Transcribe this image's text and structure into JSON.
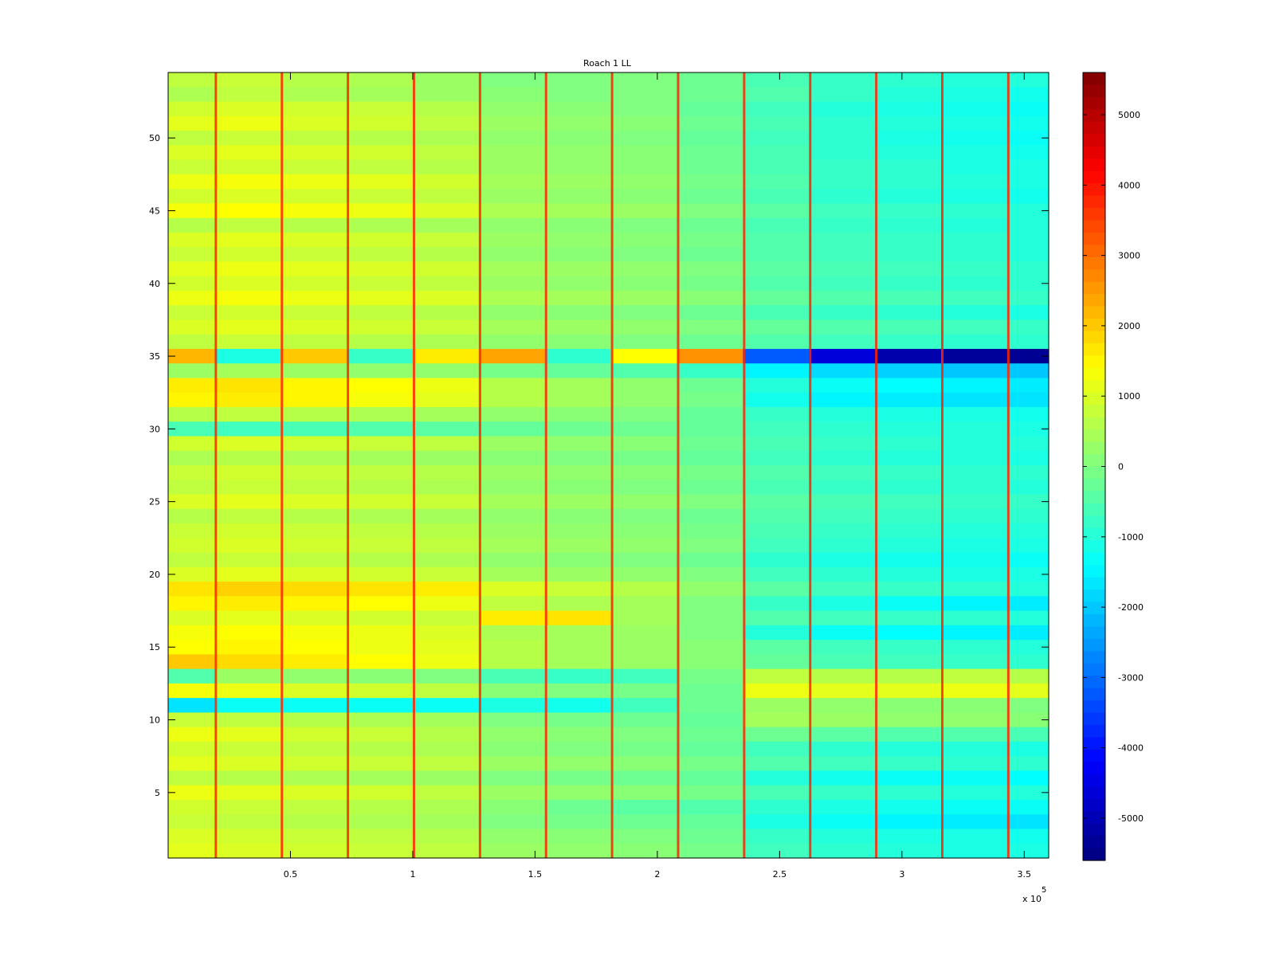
{
  "chart_data": {
    "type": "heatmap",
    "title": "Roach 1 LL",
    "xlabel": "",
    "ylabel": "",
    "xlim": [
      0,
      360000
    ],
    "ylim": [
      0.5,
      54.5
    ],
    "x_tick_labels": [
      "0.5",
      "1",
      "1.5",
      "2",
      "2.5",
      "3",
      "3.5"
    ],
    "x_tick_values": [
      50000,
      100000,
      150000,
      200000,
      250000,
      300000,
      350000
    ],
    "x_exponent_prefix": "x 10",
    "x_exponent_power": "5",
    "y_tick_labels": [
      "5",
      "10",
      "15",
      "20",
      "25",
      "30",
      "35",
      "40",
      "45",
      "50"
    ],
    "y_tick_values": [
      5,
      10,
      15,
      20,
      25,
      30,
      35,
      40,
      45,
      50
    ],
    "rows": 54,
    "colormap": "jet",
    "clim": [
      -5600,
      5600
    ],
    "colorbar_tick_labels": [
      "5000",
      "4000",
      "3000",
      "2000",
      "1000",
      "0",
      "-1000",
      "-2000",
      "-3000",
      "-4000",
      "-5000"
    ],
    "colorbar_tick_values": [
      5000,
      4000,
      3000,
      2000,
      1000,
      0,
      -1000,
      -2000,
      -3000,
      -4000,
      -5000
    ],
    "segment_boundaries_x": [
      0,
      19000,
      46000,
      73000,
      100000,
      127000,
      154000,
      181000,
      208000,
      235000,
      262000,
      289000,
      316000,
      343000,
      360000
    ],
    "segment_means": [
      [
        700,
        800,
        600,
        500,
        300,
        0,
        0,
        0,
        -200,
        -600,
        -800,
        -900,
        -1000,
        -1000
      ],
      [
        500,
        700,
        500,
        400,
        300,
        100,
        0,
        0,
        -200,
        -500,
        -800,
        -1000,
        -1100,
        -1200
      ],
      [
        900,
        1000,
        900,
        800,
        600,
        200,
        100,
        0,
        -300,
        -700,
        -1000,
        -1100,
        -1200,
        -1300
      ],
      [
        1100,
        1200,
        1000,
        900,
        700,
        300,
        200,
        100,
        -200,
        -600,
        -900,
        -1000,
        -1100,
        -1200
      ],
      [
        700,
        800,
        700,
        600,
        500,
        200,
        100,
        0,
        -300,
        -700,
        -900,
        -1100,
        -1200,
        -1300
      ],
      [
        1000,
        1100,
        1000,
        900,
        700,
        300,
        200,
        100,
        -200,
        -600,
        -900,
        -1000,
        -1100,
        -1200
      ],
      [
        800,
        900,
        800,
        700,
        600,
        300,
        200,
        100,
        -200,
        -600,
        -800,
        -900,
        -1100,
        -1100
      ],
      [
        1200,
        1300,
        1200,
        1100,
        900,
        400,
        300,
        200,
        -100,
        -500,
        -800,
        -900,
        -1000,
        -1100
      ],
      [
        900,
        1000,
        900,
        800,
        700,
        300,
        200,
        100,
        -200,
        -600,
        -900,
        -1000,
        -1100,
        -1200
      ],
      [
        1300,
        1400,
        1300,
        1200,
        1000,
        500,
        400,
        300,
        0,
        -400,
        -700,
        -800,
        -900,
        -1000
      ],
      [
        600,
        700,
        600,
        500,
        400,
        200,
        100,
        0,
        -200,
        -600,
        -800,
        -900,
        -1000,
        -1000
      ],
      [
        1000,
        1100,
        1000,
        900,
        800,
        300,
        200,
        100,
        -100,
        -500,
        -700,
        -800,
        -900,
        -1000
      ],
      [
        800,
        900,
        800,
        700,
        600,
        200,
        100,
        0,
        -200,
        -500,
        -700,
        -800,
        -900,
        -1000
      ],
      [
        1100,
        1200,
        1100,
        1000,
        900,
        400,
        300,
        200,
        0,
        -400,
        -600,
        -700,
        -800,
        -900
      ],
      [
        900,
        1000,
        900,
        800,
        700,
        300,
        200,
        100,
        -100,
        -500,
        -700,
        -800,
        -900,
        -900
      ],
      [
        1200,
        1300,
        1200,
        1100,
        1000,
        500,
        400,
        300,
        100,
        -300,
        -500,
        -600,
        -700,
        -800
      ],
      [
        800,
        900,
        800,
        700,
        600,
        200,
        100,
        0,
        -200,
        -600,
        -800,
        -900,
        -1000,
        -1100
      ],
      [
        1000,
        1100,
        1000,
        900,
        800,
        400,
        300,
        200,
        0,
        -300,
        -500,
        -600,
        -700,
        -800
      ],
      [
        700,
        800,
        700,
        600,
        500,
        200,
        100,
        0,
        -200,
        -500,
        -700,
        -800,
        -900,
        -900
      ],
      [
        2200,
        -1100,
        2000,
        -800,
        1600,
        2400,
        -900,
        1400,
        2600,
        -3200,
        -4600,
        -5100,
        -5300,
        -5400
      ],
      [
        300,
        400,
        300,
        200,
        200,
        -100,
        -300,
        -500,
        -800,
        -1500,
        -1800,
        -1900,
        -2000,
        -2000
      ],
      [
        1600,
        1700,
        1500,
        1400,
        1200,
        600,
        400,
        200,
        -200,
        -1000,
        -1300,
        -1400,
        -1500,
        -1600
      ],
      [
        1500,
        1600,
        1500,
        1300,
        1100,
        600,
        400,
        200,
        -100,
        -1200,
        -1500,
        -1600,
        -1700,
        -1700
      ],
      [
        600,
        700,
        600,
        500,
        400,
        200,
        100,
        0,
        -300,
        -800,
        -1000,
        -1100,
        -1100,
        -1200
      ],
      [
        -600,
        -700,
        -600,
        -500,
        -400,
        -300,
        -200,
        -200,
        -300,
        -700,
        -900,
        -1000,
        -1000,
        -1100
      ],
      [
        900,
        1000,
        900,
        800,
        700,
        300,
        200,
        100,
        -200,
        -600,
        -800,
        -900,
        -1000,
        -1000
      ],
      [
        500,
        600,
        500,
        400,
        300,
        100,
        0,
        -100,
        -300,
        -700,
        -900,
        -1000,
        -1000,
        -1100
      ],
      [
        800,
        900,
        800,
        700,
        600,
        300,
        200,
        100,
        -100,
        -500,
        -700,
        -800,
        -900,
        -900
      ],
      [
        700,
        800,
        700,
        600,
        500,
        200,
        100,
        0,
        -200,
        -600,
        -800,
        -900,
        -900,
        -1000
      ],
      [
        1000,
        1100,
        1000,
        900,
        800,
        400,
        300,
        200,
        0,
        -400,
        -600,
        -700,
        -800,
        -800
      ],
      [
        600,
        700,
        600,
        500,
        400,
        200,
        100,
        0,
        -200,
        -500,
        -700,
        -800,
        -900,
        -900
      ],
      [
        800,
        900,
        800,
        700,
        600,
        300,
        200,
        100,
        -100,
        -600,
        -800,
        -900,
        -1000,
        -1000
      ],
      [
        900,
        1000,
        900,
        800,
        700,
        400,
        300,
        200,
        0,
        -700,
        -900,
        -1000,
        -1100,
        -1100
      ],
      [
        700,
        800,
        700,
        600,
        500,
        200,
        100,
        0,
        -200,
        -900,
        -1100,
        -1200,
        -1200,
        -1300
      ],
      [
        1000,
        1100,
        1000,
        900,
        800,
        400,
        300,
        200,
        0,
        -700,
        -900,
        -1000,
        -1100,
        -1100
      ],
      [
        1700,
        1900,
        1800,
        1700,
        1600,
        1000,
        800,
        600,
        200,
        -400,
        -700,
        -800,
        -900,
        -1000
      ],
      [
        1500,
        1600,
        1500,
        1400,
        1200,
        700,
        500,
        400,
        0,
        -800,
        -1100,
        -1300,
        -1500,
        -1600
      ],
      [
        1000,
        1100,
        1000,
        900,
        800,
        1600,
        1700,
        400,
        0,
        -500,
        -700,
        -800,
        -900,
        -1000
      ],
      [
        1300,
        1400,
        1300,
        1200,
        1000,
        500,
        400,
        300,
        0,
        -1000,
        -1300,
        -1400,
        -1500,
        -1600
      ],
      [
        1400,
        1500,
        1400,
        1200,
        1100,
        600,
        400,
        300,
        100,
        -400,
        -700,
        -800,
        -900,
        -1000
      ],
      [
        2000,
        1800,
        1600,
        1400,
        1200,
        600,
        400,
        300,
        100,
        -300,
        -600,
        -700,
        -800,
        -900
      ],
      [
        -500,
        300,
        200,
        100,
        0,
        -600,
        -800,
        -700,
        -100,
        700,
        600,
        600,
        700,
        600
      ],
      [
        1300,
        1200,
        1000,
        900,
        700,
        100,
        0,
        -100,
        -200,
        1200,
        1100,
        1100,
        1200,
        1100
      ],
      [
        -1700,
        -1300,
        -1300,
        -1300,
        -1300,
        -1100,
        -1200,
        -700,
        -200,
        300,
        200,
        100,
        100,
        0
      ],
      [
        800,
        700,
        600,
        500,
        400,
        0,
        -100,
        -200,
        -300,
        400,
        300,
        200,
        200,
        100
      ],
      [
        1200,
        1100,
        900,
        800,
        600,
        200,
        100,
        0,
        -200,
        -200,
        -400,
        -500,
        -500,
        -600
      ],
      [
        900,
        800,
        700,
        600,
        500,
        100,
        0,
        -100,
        -300,
        -700,
        -900,
        -1000,
        -1000,
        -1100
      ],
      [
        1100,
        1000,
        900,
        800,
        700,
        300,
        200,
        100,
        -100,
        -500,
        -700,
        -800,
        -900,
        -900
      ],
      [
        700,
        600,
        500,
        400,
        300,
        0,
        -100,
        -200,
        -300,
        -1000,
        -1200,
        -1300,
        -1300,
        -1400
      ],
      [
        1200,
        1100,
        1000,
        900,
        700,
        300,
        200,
        100,
        -100,
        -600,
        -800,
        -900,
        -1000,
        -1000
      ],
      [
        900,
        800,
        700,
        600,
        500,
        100,
        -200,
        -400,
        -500,
        -900,
        -1100,
        -1200,
        -1300,
        -1300
      ],
      [
        800,
        700,
        600,
        500,
        400,
        0,
        -100,
        -200,
        -300,
        -1100,
        -1300,
        -1500,
        -1600,
        -1700
      ],
      [
        1000,
        900,
        800,
        700,
        600,
        200,
        100,
        0,
        -200,
        -800,
        -1000,
        -1100,
        -1100,
        -1200
      ],
      [
        1100,
        1000,
        900,
        800,
        700,
        300,
        200,
        100,
        -100,
        -700,
        -900,
        -1000,
        -1100,
        -1100
      ]
    ],
    "vertical_spike_lines_x": [
      19500,
      46500,
      73500,
      100500,
      127500,
      154500,
      181500,
      208500,
      235500,
      262500,
      289500,
      316500,
      343500
    ]
  }
}
